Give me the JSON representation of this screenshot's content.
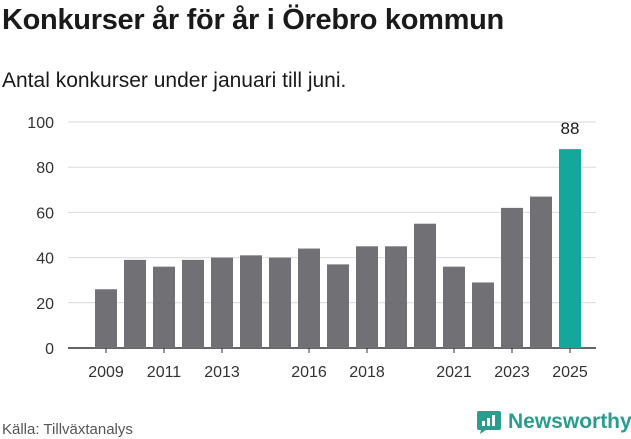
{
  "header": {
    "title": "Konkurser år för år i Örebro kommun",
    "subtitle": "Antal konkurser under januari till juni."
  },
  "footer": {
    "source": "Källa: Tillväxtanalys",
    "brand": "Newsworthy"
  },
  "icons": {
    "brand_icon": "newsworthy-logo-icon"
  },
  "colors": {
    "bar": "#717075",
    "highlight": "#14a89a",
    "grid": "#d9d9d9",
    "brand": "#2a9d8f"
  },
  "chart_data": {
    "type": "bar",
    "title": "Konkurser år för år i Örebro kommun",
    "subtitle": "Antal konkurser under januari till juni.",
    "categories": [
      "2009",
      "2010",
      "2011",
      "2012",
      "2013",
      "2014",
      "2015",
      "2016",
      "2017",
      "2018",
      "2019",
      "2020",
      "2021",
      "2022",
      "2023",
      "2024",
      "2025"
    ],
    "values": [
      26,
      39,
      36,
      39,
      40,
      41,
      40,
      44,
      37,
      45,
      45,
      55,
      36,
      29,
      62,
      67,
      88
    ],
    "x_tick_labels": [
      "2009",
      "2011",
      "2013",
      "2016",
      "2018",
      "2021",
      "2023",
      "2025"
    ],
    "highlight_category": "2025",
    "data_labels": [
      {
        "category": "2025",
        "text": "88"
      }
    ],
    "ylim": [
      0,
      100
    ],
    "y_ticks": [
      0,
      20,
      40,
      60,
      80,
      100
    ],
    "grid": "horizontal",
    "legend": "none",
    "xlabel": "",
    "ylabel": ""
  }
}
